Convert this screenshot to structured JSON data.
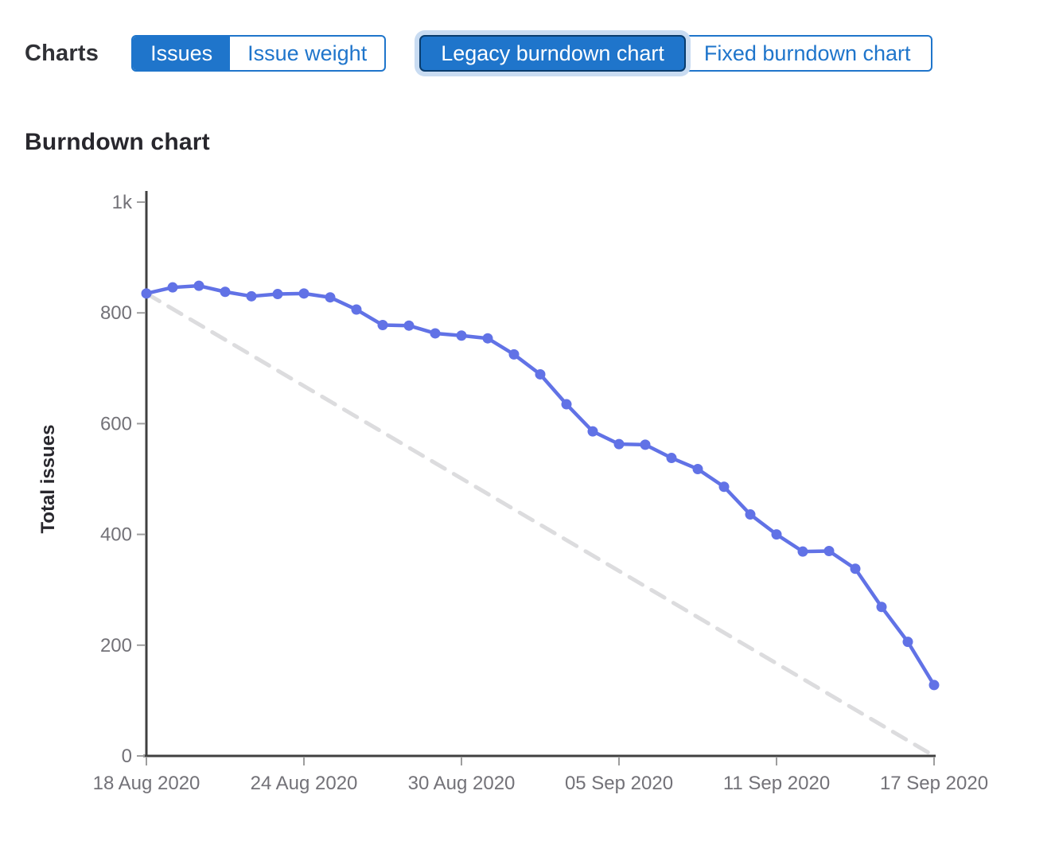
{
  "header": {
    "charts_label": "Charts",
    "metric_toggle": [
      {
        "label": "Issues",
        "selected": true
      },
      {
        "label": "Issue weight",
        "selected": false
      }
    ],
    "chart_type_toggle": [
      {
        "label": "Legacy burndown chart",
        "selected": true,
        "focused": true
      },
      {
        "label": "Fixed burndown chart",
        "selected": false
      }
    ]
  },
  "section_title": "Burndown chart",
  "colors": {
    "accent_blue": "#1f75cb",
    "selected_button_border": "#0a3d6e",
    "focus_halo": "#c9dcf2",
    "series_line": "#6172e6",
    "guideline": "#dcdcde",
    "axis": "#404040",
    "tick_text": "#737278",
    "heading_text": "#28272d"
  },
  "chart_data": {
    "type": "line",
    "title": "Burndown chart",
    "xlabel": "",
    "ylabel": "Total issues",
    "ylim": [
      0,
      1000
    ],
    "x_range_days": [
      0,
      30
    ],
    "grid": false,
    "legend_position": "none",
    "y_ticks": [
      {
        "value": 0,
        "label": "0"
      },
      {
        "value": 200,
        "label": "200"
      },
      {
        "value": 400,
        "label": "400"
      },
      {
        "value": 600,
        "label": "600"
      },
      {
        "value": 800,
        "label": "800"
      },
      {
        "value": 1000,
        "label": "1k"
      }
    ],
    "x_ticks": [
      {
        "day": 0,
        "label": "18 Aug 2020"
      },
      {
        "day": 6,
        "label": "24 Aug 2020"
      },
      {
        "day": 12,
        "label": "30 Aug 2020"
      },
      {
        "day": 18,
        "label": "05 Sep 2020"
      },
      {
        "day": 24,
        "label": "11 Sep 2020"
      },
      {
        "day": 30,
        "label": "17 Sep 2020"
      }
    ],
    "series": [
      {
        "name": "Open issues",
        "type": "line",
        "color": "#6172e6",
        "marker": "circle",
        "x_days": [
          0,
          1,
          2,
          3,
          4,
          5,
          6,
          7,
          8,
          9,
          10,
          11,
          12,
          13,
          14,
          15,
          16,
          17,
          18,
          19,
          20,
          21,
          22,
          23,
          24,
          25,
          26,
          27,
          28,
          29,
          30
        ],
        "values": [
          835,
          846,
          849,
          838,
          830,
          834,
          835,
          828,
          806,
          778,
          777,
          763,
          759,
          754,
          725,
          689,
          635,
          586,
          563,
          562,
          538,
          518,
          486,
          436,
          400,
          369,
          370,
          338,
          269,
          206,
          128
        ]
      },
      {
        "name": "Guideline",
        "type": "dashed-line",
        "color": "#dcdcde",
        "points": [
          {
            "day": 0,
            "value": 835
          },
          {
            "day": 30,
            "value": 0
          }
        ]
      }
    ]
  }
}
